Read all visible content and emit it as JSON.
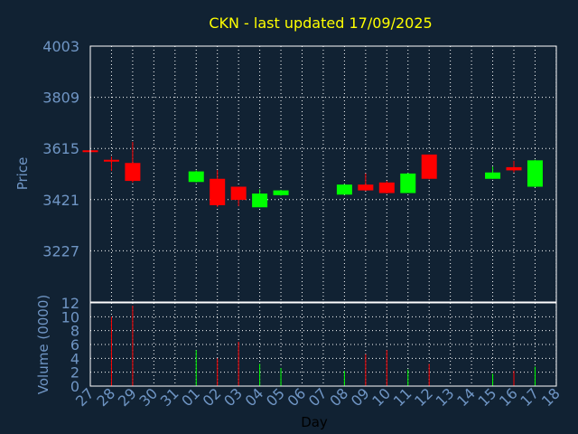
{
  "colors": {
    "background": "#112233",
    "up": "#00ff00",
    "down": "#ff0000",
    "grid": "#ffffff",
    "axis_text": "#6f95c4",
    "title": "#ffff00"
  },
  "chart_data": [
    {
      "type": "candlestick",
      "title": "CKN - last updated 17/09/2025",
      "ylabel": "Price",
      "xlabel": "",
      "ylim": [
        3033,
        4003
      ],
      "yticks": [
        4003,
        3809,
        3615,
        3421,
        3227
      ],
      "grid": true,
      "x_categories": [
        "27",
        "28",
        "29",
        "30",
        "31",
        "01",
        "02",
        "03",
        "04",
        "05",
        "06",
        "07",
        "08",
        "09",
        "10",
        "11",
        "12",
        "13",
        "14",
        "15",
        "16",
        "17",
        "18"
      ],
      "candles": [
        {
          "date": "27",
          "open": 3608,
          "high": 3610,
          "low": 3604,
          "close": 3606
        },
        {
          "date": "28",
          "open": 3572,
          "high": 3584,
          "low": 3530,
          "close": 3566
        },
        {
          "date": "29",
          "open": 3560,
          "high": 3640,
          "low": 3486,
          "close": 3492
        },
        {
          "date": "01",
          "open": 3488,
          "high": 3532,
          "low": 3486,
          "close": 3528
        },
        {
          "date": "02",
          "open": 3500,
          "high": 3533,
          "low": 3393,
          "close": 3400
        },
        {
          "date": "03",
          "open": 3470,
          "high": 3470,
          "low": 3396,
          "close": 3420
        },
        {
          "date": "04",
          "open": 3392,
          "high": 3460,
          "low": 3392,
          "close": 3444
        },
        {
          "date": "05",
          "open": 3438,
          "high": 3458,
          "low": 3436,
          "close": 3456
        },
        {
          "date": "08",
          "open": 3440,
          "high": 3480,
          "low": 3440,
          "close": 3478
        },
        {
          "date": "09",
          "open": 3478,
          "high": 3520,
          "low": 3454,
          "close": 3456
        },
        {
          "date": "10",
          "open": 3486,
          "high": 3492,
          "low": 3444,
          "close": 3446
        },
        {
          "date": "11",
          "open": 3446,
          "high": 3522,
          "low": 3446,
          "close": 3520
        },
        {
          "date": "12",
          "open": 3592,
          "high": 3592,
          "low": 3498,
          "close": 3500
        },
        {
          "date": "15",
          "open": 3500,
          "high": 3546,
          "low": 3500,
          "close": 3524
        },
        {
          "date": "16",
          "open": 3544,
          "high": 3568,
          "low": 3524,
          "close": 3532
        },
        {
          "date": "17",
          "open": 3470,
          "high": 3572,
          "low": 3468,
          "close": 3570
        }
      ]
    },
    {
      "type": "bar",
      "ylabel": "Volume (0000)",
      "xlabel": "Day",
      "ylim": [
        0,
        12
      ],
      "yticks": [
        0,
        2,
        4,
        6,
        8,
        10,
        12
      ],
      "grid": true,
      "x_categories": [
        "27",
        "28",
        "29",
        "30",
        "31",
        "01",
        "02",
        "03",
        "04",
        "05",
        "06",
        "07",
        "08",
        "09",
        "10",
        "11",
        "12",
        "13",
        "14",
        "15",
        "16",
        "17",
        "18"
      ],
      "bars": [
        {
          "date": "27",
          "value": 0.2,
          "direction": "down"
        },
        {
          "date": "28",
          "value": 10,
          "direction": "down"
        },
        {
          "date": "29",
          "value": 11.6,
          "direction": "down"
        },
        {
          "date": "01",
          "value": 5.2,
          "direction": "up"
        },
        {
          "date": "02",
          "value": 4,
          "direction": "down"
        },
        {
          "date": "03",
          "value": 6.4,
          "direction": "down"
        },
        {
          "date": "04",
          "value": 3.2,
          "direction": "up"
        },
        {
          "date": "05",
          "value": 2.6,
          "direction": "up"
        },
        {
          "date": "08",
          "value": 2.2,
          "direction": "up"
        },
        {
          "date": "09",
          "value": 4.6,
          "direction": "down"
        },
        {
          "date": "10",
          "value": 5.2,
          "direction": "down"
        },
        {
          "date": "11",
          "value": 2.4,
          "direction": "up"
        },
        {
          "date": "12",
          "value": 3.2,
          "direction": "down"
        },
        {
          "date": "15",
          "value": 1.8,
          "direction": "up"
        },
        {
          "date": "16",
          "value": 2.2,
          "direction": "down"
        },
        {
          "date": "17",
          "value": 2.8,
          "direction": "up"
        }
      ]
    }
  ]
}
